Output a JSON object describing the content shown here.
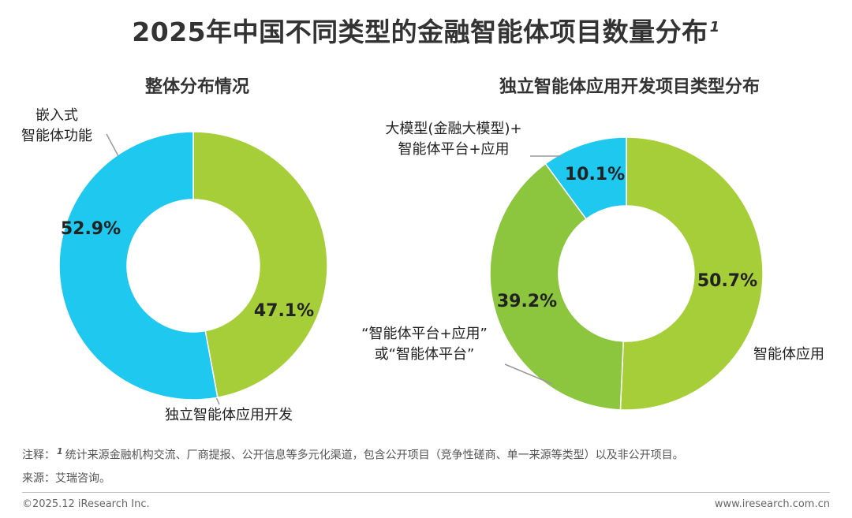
{
  "title": {
    "text": "2025年中国不同类型的金融智能体项目数量分布",
    "superscript": "1"
  },
  "colors": {
    "cyan": "#1EC8EF",
    "green": "#A6CE39",
    "dark_green": "#8CC63F",
    "label": "#222222",
    "leader": "#9a9a9a"
  },
  "chart_data": [
    {
      "type": "pie",
      "variant": "donut",
      "title": "整体分布情况",
      "slices": [
        {
          "name": "独立智能体应用开发",
          "value": 47.1,
          "label": "47.1%",
          "color": "#A6CE39"
        },
        {
          "name": "嵌入式\n智能体功能",
          "value": 52.9,
          "label": "52.9%",
          "color": "#1EC8EF"
        }
      ],
      "start": "12 o'clock",
      "direction": "clockwise"
    },
    {
      "type": "pie",
      "variant": "donut",
      "title": "独立智能体应用开发项目类型分布",
      "slices": [
        {
          "name": "智能体应用",
          "value": 50.7,
          "label": "50.7%",
          "color": "#A6CE39"
        },
        {
          "name": "“智能体平台+应用”\n或“智能体平台”",
          "value": 39.2,
          "label": "39.2%",
          "color": "#8CC63F"
        },
        {
          "name": "大模型(金融大模型)+\n智能体平台+应用",
          "value": 10.1,
          "label": "10.1%",
          "color": "#1EC8EF"
        }
      ],
      "start": "12 o'clock",
      "direction": "clockwise"
    }
  ],
  "footnotes": {
    "note_prefix": "注释：",
    "note_mark": "1",
    "note_text": "统计来源金融机构交流、厂商提报、公开信息等多元化渠道，包含公开项目（竞争性磋商、单一来源等类型）以及非公开项目。",
    "source": "来源：艾瑞咨询。"
  },
  "footer": {
    "copyright": "©2025.12 iResearch Inc.",
    "website": "www.iresearch.com.cn"
  }
}
